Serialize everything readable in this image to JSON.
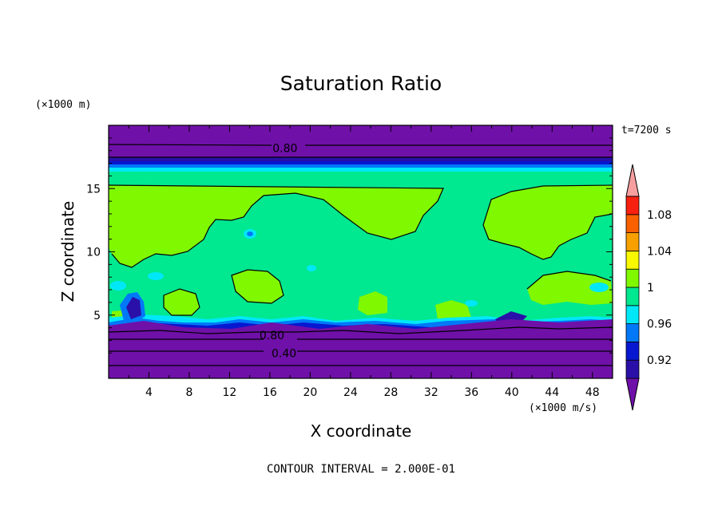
{
  "chart_data": {
    "type": "heatmap",
    "title": "Saturation Ratio",
    "xlabel": "X coordinate",
    "ylabel": "Z coordinate",
    "x_unit": "(×1000 m/s)",
    "y_unit": "(×1000 m)",
    "time_label": "t=7200 s",
    "contour_interval": "CONTOUR INTERVAL = 2.000E-01",
    "xlim": [
      0,
      50
    ],
    "ylim": [
      0,
      20
    ],
    "x_ticks": [
      4,
      8,
      12,
      16,
      20,
      24,
      28,
      32,
      36,
      40,
      44,
      48
    ],
    "y_ticks": [
      5,
      10,
      15
    ],
    "colorbar": {
      "levels": [
        0.9,
        0.92,
        0.94,
        0.96,
        0.98,
        1.0,
        1.02,
        1.04,
        1.06,
        1.08,
        1.1
      ],
      "labels": [
        "0.92",
        "0.96",
        "1",
        "1.04",
        "1.08"
      ],
      "label_values": [
        0.92,
        0.96,
        1.0,
        1.04,
        1.08
      ],
      "colors": [
        "#6f10a8",
        "#2a10a8",
        "#0818d0",
        "#0078f8",
        "#00e8f8",
        "#00e890",
        "#80f800",
        "#f8f800",
        "#f8a000",
        "#f86000",
        "#f82010",
        "#f8a0a0"
      ]
    },
    "contour_labels": [
      {
        "text": "0.80",
        "x": 17.5,
        "y": 18.2
      },
      {
        "text": "0.80",
        "x": 16.2,
        "y": 3.4
      },
      {
        "text": "0.40",
        "x": 17.4,
        "y": 2.0
      }
    ]
  }
}
